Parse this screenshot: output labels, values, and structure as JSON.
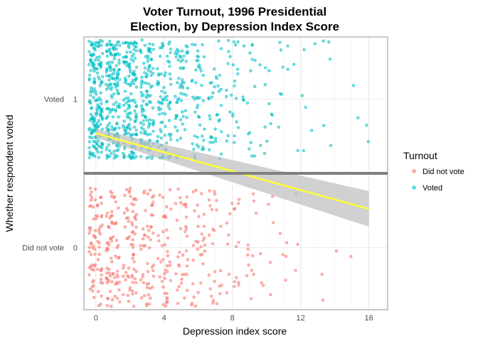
{
  "chart_data": {
    "type": "scatter",
    "title_lines": [
      "Voter Turnout, 1996 Presidential",
      "Election, by Depression Index Score"
    ],
    "xlabel": "Depression index score",
    "ylabel": "Whether respondent voted",
    "xlim": [
      -0.7,
      17.1
    ],
    "ylim": [
      -0.42,
      1.42
    ],
    "x_ticks": [
      0,
      4,
      8,
      12,
      16
    ],
    "x_tick_labels": [
      "0",
      "4",
      "8",
      "12",
      "16"
    ],
    "y_ticks": [
      0,
      1
    ],
    "y_tick_labels": [
      "0",
      "1"
    ],
    "y_category_labels": [
      "Did not vote",
      "Voted"
    ],
    "y_jitter": 0.4,
    "grid": true,
    "divider_y": 0.5,
    "legend": {
      "title": "Turnout",
      "placement": "right",
      "entries": [
        {
          "label": "Did not vote",
          "color": "#F8766D"
        },
        {
          "label": "Voted",
          "color": "#00BFC4"
        }
      ]
    },
    "series": [
      {
        "name": "Did not vote",
        "y": 0,
        "color": "#F8766D",
        "x_counts": [
          [
            0,
            75
          ],
          [
            1,
            70
          ],
          [
            2,
            65
          ],
          [
            3,
            50
          ],
          [
            4,
            40
          ],
          [
            5,
            35
          ],
          [
            6,
            30
          ],
          [
            7,
            25
          ],
          [
            8,
            18
          ],
          [
            9,
            12
          ],
          [
            10,
            8
          ],
          [
            11,
            5
          ],
          [
            12,
            3
          ],
          [
            13,
            2
          ],
          [
            14,
            1
          ],
          [
            15,
            1
          ]
        ]
      },
      {
        "name": "Voted",
        "y": 1,
        "color": "#00BFC4",
        "x_counts": [
          [
            0,
            180
          ],
          [
            1,
            160
          ],
          [
            2,
            140
          ],
          [
            3,
            110
          ],
          [
            4,
            80
          ],
          [
            5,
            60
          ],
          [
            6,
            45
          ],
          [
            7,
            35
          ],
          [
            8,
            25
          ],
          [
            9,
            18
          ],
          [
            10,
            12
          ],
          [
            11,
            8
          ],
          [
            12,
            6
          ],
          [
            13,
            4
          ],
          [
            14,
            3
          ],
          [
            15,
            2
          ],
          [
            16,
            2
          ]
        ]
      }
    ],
    "fit": {
      "type": "linear",
      "color": "#FFFF33",
      "band_color": "#BEBEBE",
      "points": [
        [
          0,
          0.77
        ],
        [
          16,
          0.26
        ]
      ],
      "ci_low": [
        [
          0,
          0.74
        ],
        [
          16,
          0.14
        ]
      ],
      "ci_high": [
        [
          0,
          0.8
        ],
        [
          16,
          0.38
        ]
      ]
    }
  }
}
